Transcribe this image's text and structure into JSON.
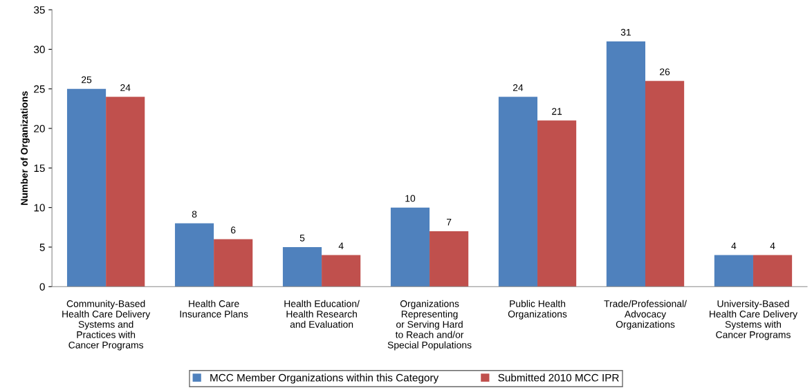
{
  "chart_data": {
    "type": "bar",
    "ylabel": "Number of Organizations",
    "categories": [
      "Community-Based\nHealth Care Delivery\nSystems and\nPractices with\nCancer Programs",
      "Health Care\nInsurance Plans",
      "Health Education/\nHealth Research\nand Evaluation",
      "Organizations\nRepresenting\nor Serving Hard\nto Reach and/or\nSpecial Populations",
      "Public Health\nOrganizations",
      "Trade/Professional/\nAdvocacy\nOrganizations",
      "University-Based\nHealth Care Delivery\nSystems with\nCancer Programs"
    ],
    "series": [
      {
        "name": "MCC Member Organizations within this Category",
        "color": "#4f81bd",
        "values": [
          25,
          8,
          5,
          10,
          24,
          31,
          4
        ]
      },
      {
        "name": "Submitted 2010 MCC IPR",
        "color": "#c0504d",
        "values": [
          24,
          6,
          4,
          7,
          21,
          26,
          4
        ]
      }
    ],
    "ylim": [
      0,
      35
    ],
    "yticks": [
      0,
      5,
      10,
      15,
      20,
      25,
      30,
      35
    ],
    "grid": false,
    "legend": "bottom",
    "data_labels": true
  }
}
